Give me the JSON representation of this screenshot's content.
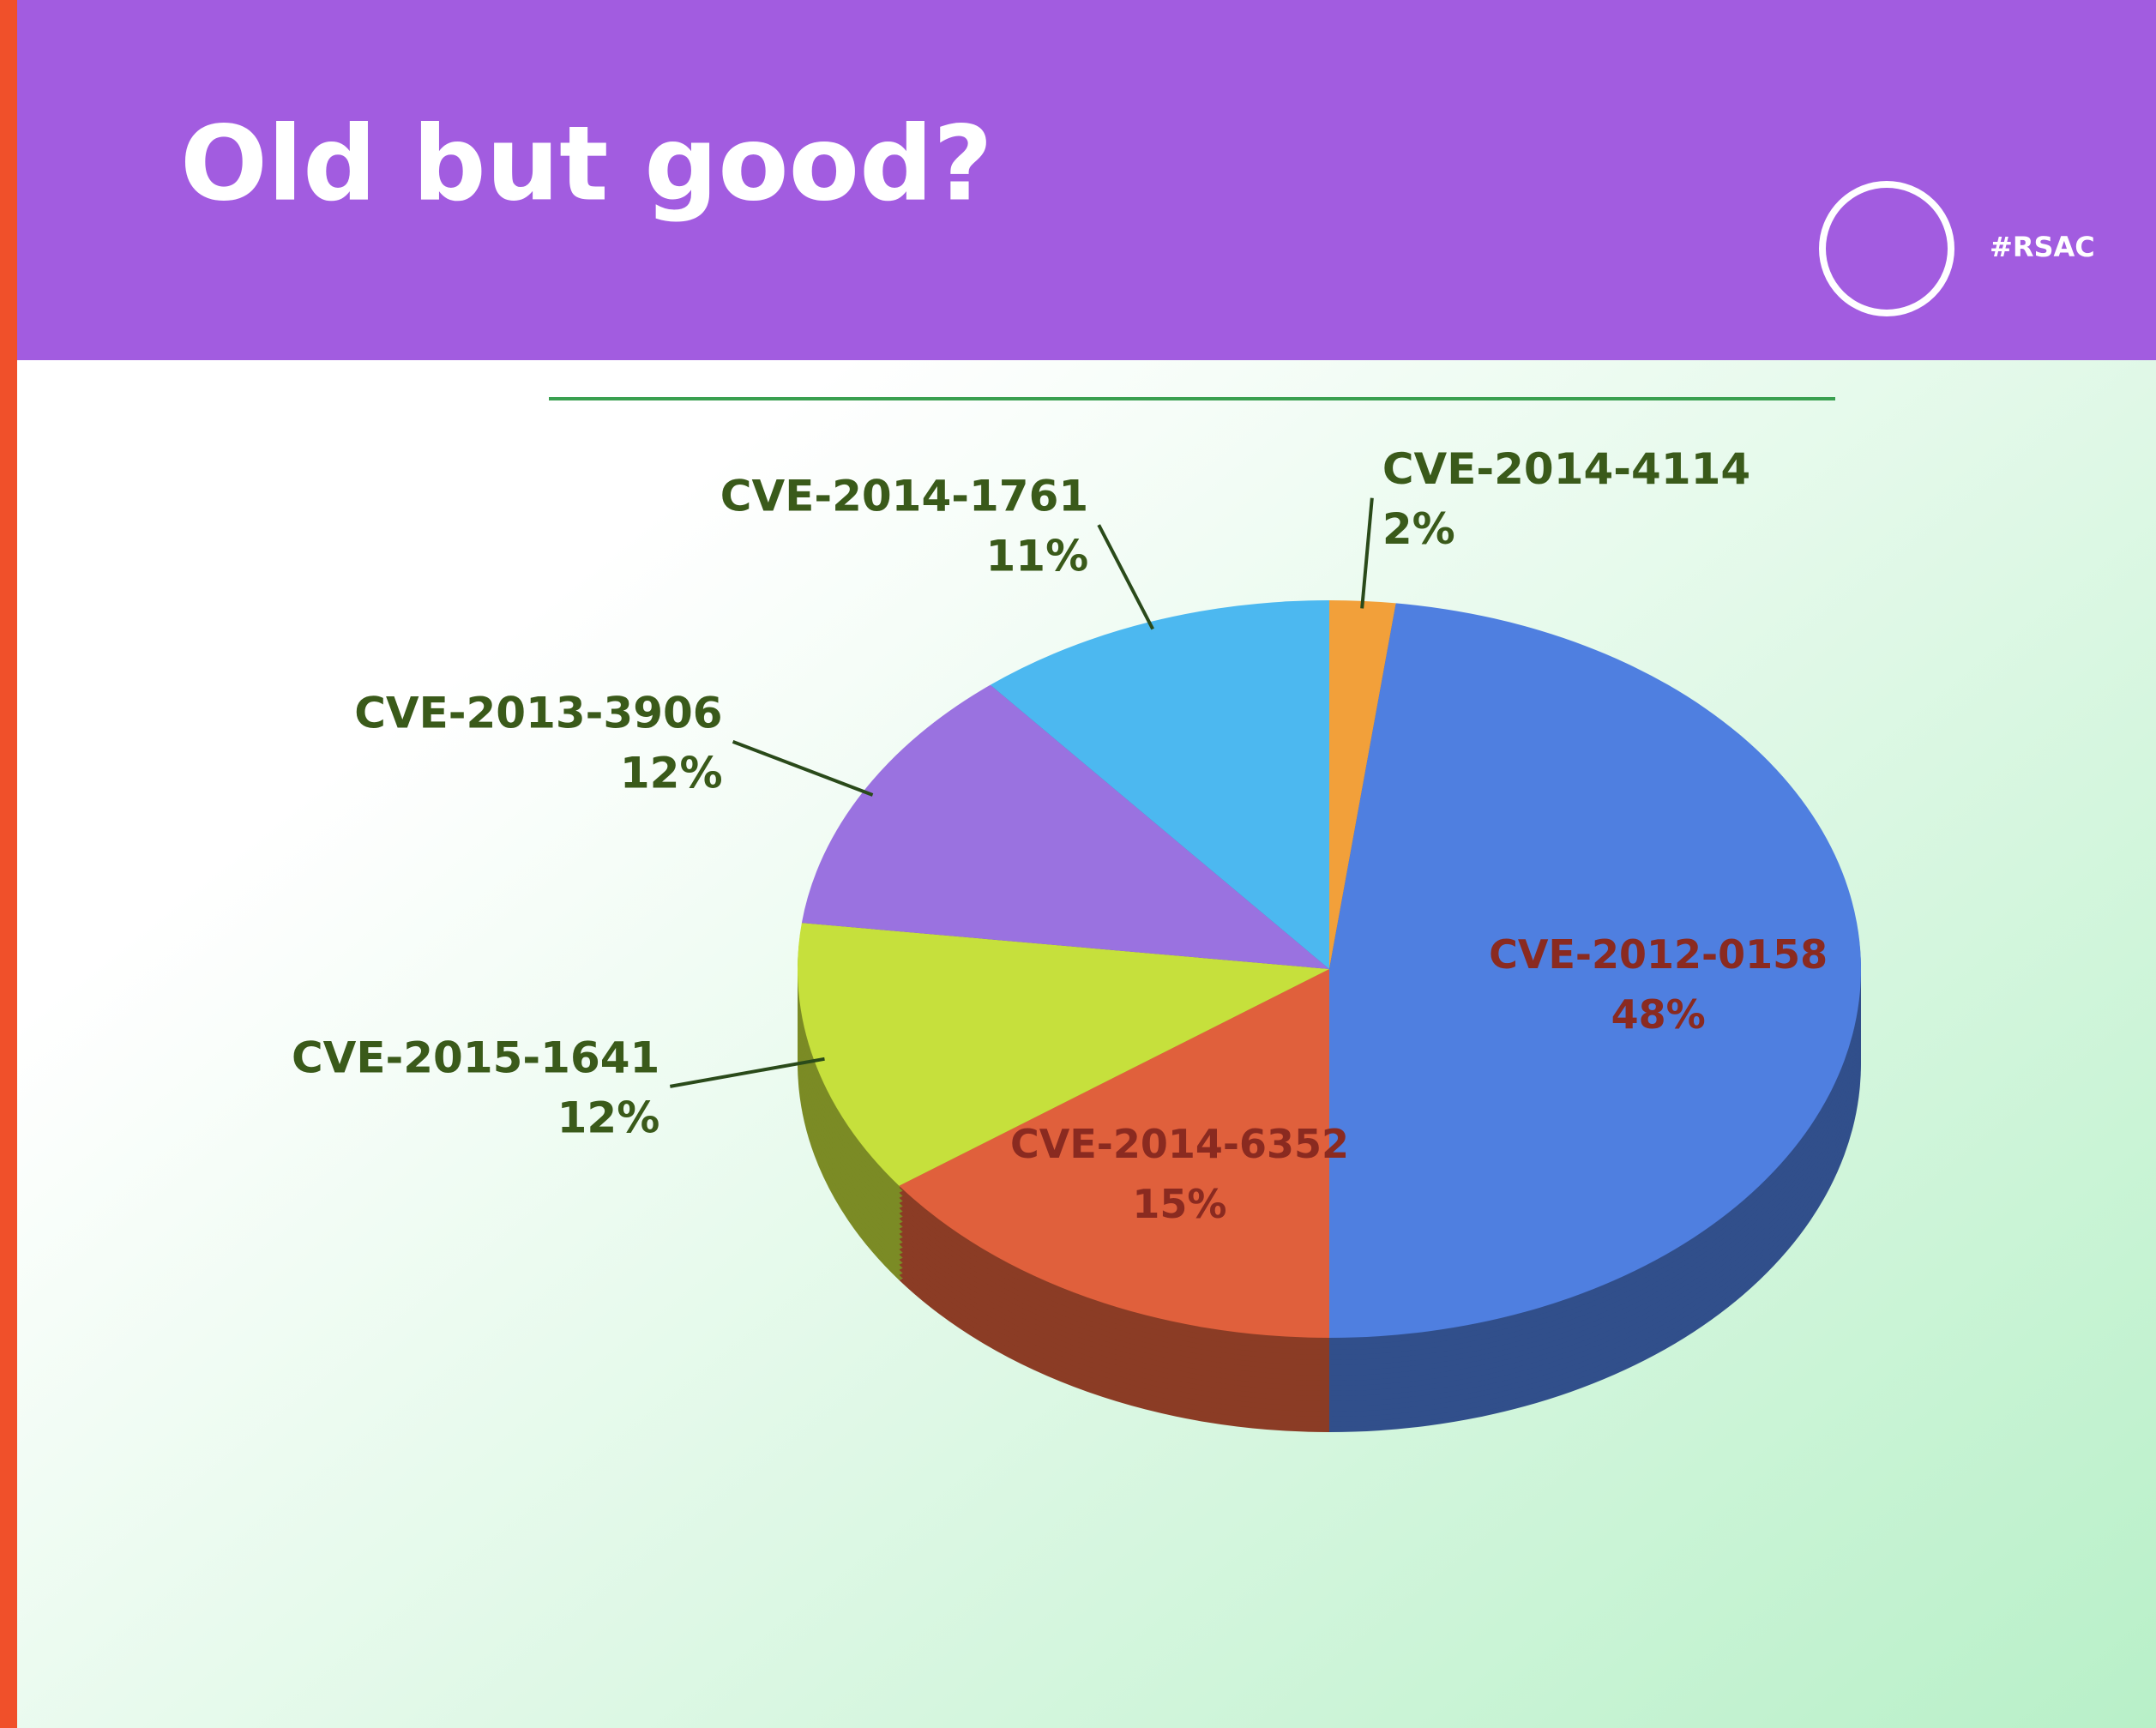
{
  "chart_data": {
    "type": "pie",
    "title": "Old but good?",
    "badge": "#RSAC",
    "categories": [
      "CVE-2014-4114",
      "CVE-2012-0158",
      "CVE-2014-6352",
      "CVE-2015-1641",
      "CVE-2013-3906",
      "CVE-2014-1761"
    ],
    "values": [
      2,
      48,
      15,
      12,
      12,
      11
    ],
    "value_labels": [
      "2%",
      "48%",
      "15%",
      "12%",
      "12%",
      "11%"
    ],
    "colors": [
      "#f2a03a",
      "#4f7fe0",
      "#e0603c",
      "#c6e03c",
      "#9a72e0",
      "#4cb8f0"
    ]
  }
}
